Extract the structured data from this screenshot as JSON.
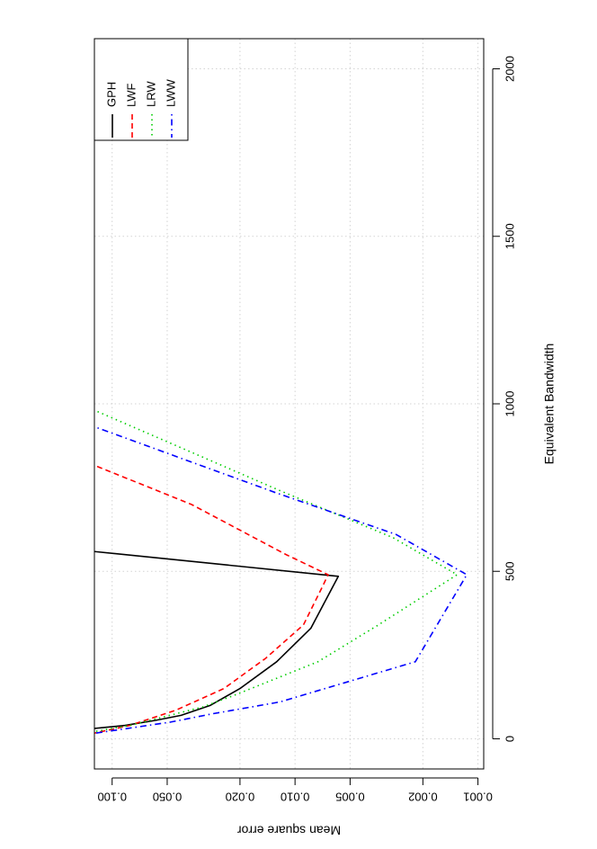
{
  "chart_data": {
    "type": "line",
    "xlabel": "Equivalent Bandwidth",
    "ylabel": "Mean square error",
    "x_axis": {
      "ticks": [
        0,
        500,
        1000,
        1500,
        2000
      ],
      "tick_labels": [
        "0",
        "500",
        "1000",
        "1500",
        "2000"
      ],
      "range": [
        -90,
        2090
      ]
    },
    "y_axis": {
      "scale": "log",
      "ticks": [
        0.001,
        0.002,
        0.005,
        0.01,
        0.02,
        0.05,
        0.1
      ],
      "tick_labels": [
        "0.001",
        "0.002",
        "0.005",
        "0.010",
        "0.020",
        "0.050",
        "0.100"
      ],
      "range": [
        0.00093,
        0.125
      ]
    },
    "grid": true,
    "legend_position": "top-right",
    "rotation": "page rotated 90 degrees (landscape plot shown in portrait)",
    "series": [
      {
        "name": "GPH",
        "color": "#000000",
        "dash": "solid",
        "points": [
          [
            30,
            0.13
          ],
          [
            40,
            0.085
          ],
          [
            55,
            0.058
          ],
          [
            70,
            0.042
          ],
          [
            100,
            0.029
          ],
          [
            150,
            0.02
          ],
          [
            230,
            0.0126
          ],
          [
            330,
            0.0082
          ],
          [
            485,
            0.0058
          ],
          [
            560,
            0.13
          ]
        ]
      },
      {
        "name": "LWF",
        "color": "#ff0000",
        "dash": "dashed",
        "points": [
          [
            15,
            0.13
          ],
          [
            40,
            0.08
          ],
          [
            85,
            0.045
          ],
          [
            150,
            0.0245
          ],
          [
            240,
            0.0145
          ],
          [
            340,
            0.009
          ],
          [
            460,
            0.007
          ],
          [
            490,
            0.0066
          ],
          [
            550,
            0.0112
          ],
          [
            700,
            0.037
          ],
          [
            820,
            0.13
          ]
        ]
      },
      {
        "name": "LRW",
        "color": "#00cd00",
        "dash": "dotted",
        "points": [
          [
            20,
            0.13
          ],
          [
            40,
            0.08
          ],
          [
            95,
            0.032
          ],
          [
            130,
            0.0215
          ],
          [
            230,
            0.0075
          ],
          [
            340,
            0.0035
          ],
          [
            490,
            0.0013
          ],
          [
            600,
            0.0029
          ],
          [
            740,
            0.012
          ],
          [
            985,
            0.13
          ]
        ]
      },
      {
        "name": "LWW",
        "color": "#0000ff",
        "dash": "dot-dash",
        "points": [
          [
            15,
            0.13
          ],
          [
            50,
            0.048
          ],
          [
            75,
            0.028
          ],
          [
            110,
            0.0121
          ],
          [
            230,
            0.0022
          ],
          [
            490,
            0.00115
          ],
          [
            610,
            0.0028
          ],
          [
            735,
            0.0128
          ],
          [
            935,
            0.13
          ]
        ]
      }
    ]
  }
}
